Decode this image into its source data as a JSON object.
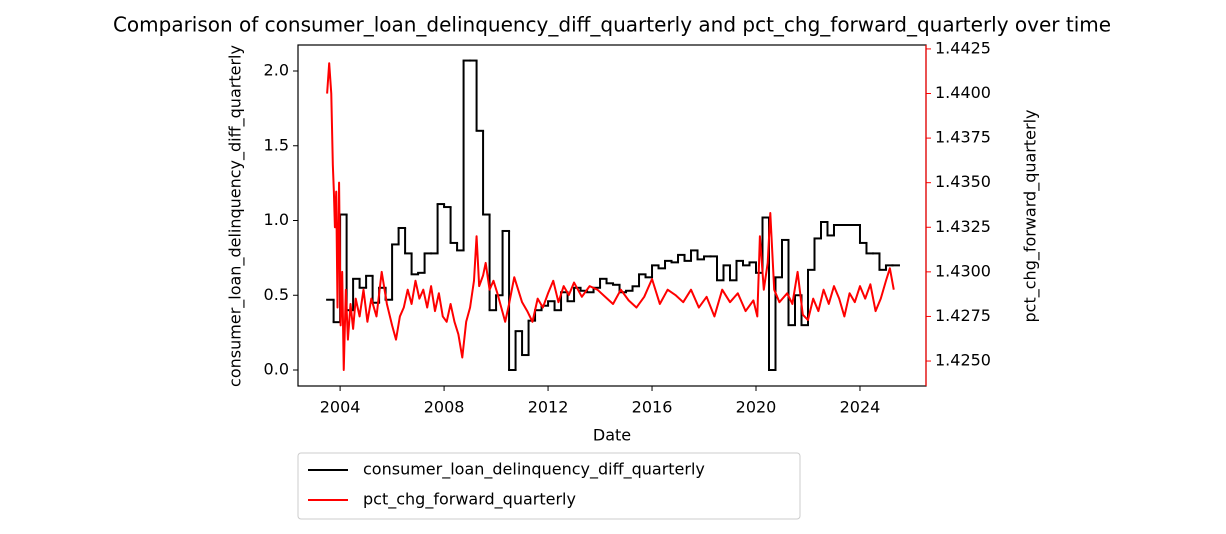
{
  "chart_data": {
    "type": "line",
    "title": "Comparison of consumer_loan_delinquency_diff_quarterly and pct_chg_forward_quarterly over time",
    "xlabel": "Date",
    "ylabel": "consumer_loan_delinquency_diff_quarterly",
    "y2label": "pct_chg_forward_quarterly",
    "xlim": [
      2002.38,
      2026.54
    ],
    "xticks": [
      2004,
      2008,
      2012,
      2016,
      2020,
      2024
    ],
    "ylim": [
      -0.107,
      2.174
    ],
    "yticks": [
      {
        "value": 0,
        "label": "0.0"
      },
      0.5,
      {
        "value": 1,
        "label": "1.0"
      },
      1.5,
      {
        "value": 2,
        "label": "2.0"
      }
    ],
    "y2lim": [
      1.4236,
      1.44272
    ],
    "y2ticks": [
      {
        "value": 1.425,
        "label": "1.4250"
      },
      1.4275,
      {
        "value": 1.43,
        "label": "1.4300"
      },
      1.4325,
      {
        "value": 1.435,
        "label": "1.4350"
      },
      1.4375,
      {
        "value": 1.44,
        "label": "1.4400"
      },
      1.4425
    ],
    "y2color": "#ff0000",
    "legend": "below",
    "series": [
      {
        "name": "consumer_loan_delinquency_diff_quarterly",
        "color": "#000000",
        "step": true,
        "x": [
          2003.5,
          2003.75,
          2004,
          2004.25,
          2004.5,
          2004.75,
          2005,
          2005.25,
          2005.5,
          2005.75,
          2006,
          2006.25,
          2006.5,
          2006.75,
          2007,
          2007.25,
          2007.5,
          2007.75,
          2008,
          2008.25,
          2008.5,
          2008.75,
          2009,
          2009.25,
          2009.5,
          2009.75,
          2010,
          2010.25,
          2010.5,
          2010.75,
          2011,
          2011.25,
          2011.5,
          2011.75,
          2012,
          2012.25,
          2012.5,
          2012.75,
          2013,
          2013.25,
          2013.5,
          2013.75,
          2014,
          2014.25,
          2014.5,
          2014.75,
          2015,
          2015.25,
          2015.5,
          2015.75,
          2016,
          2016.25,
          2016.5,
          2016.75,
          2017,
          2017.25,
          2017.5,
          2017.75,
          2018,
          2018.25,
          2018.5,
          2018.75,
          2019,
          2019.25,
          2019.5,
          2019.75,
          2020,
          2020.25,
          2020.5,
          2020.75,
          2021,
          2021.25,
          2021.5,
          2021.75,
          2022,
          2022.25,
          2022.5,
          2022.75,
          2023,
          2023.25,
          2023.5,
          2023.75,
          2024,
          2024.25,
          2024.5,
          2024.75,
          2025,
          2025.25
        ],
        "values": [
          0.47,
          0.32,
          1.04,
          0.4,
          0.61,
          0.55,
          0.63,
          0.45,
          0.55,
          0.47,
          0.84,
          0.95,
          0.78,
          0.64,
          0.65,
          0.78,
          0.78,
          1.11,
          1.09,
          0.85,
          0.8,
          2.07,
          2.07,
          1.6,
          1.04,
          0.4,
          0.5,
          0.93,
          0,
          0.26,
          0.1,
          0.33,
          0.4,
          0.43,
          0.46,
          0.4,
          0.52,
          0.46,
          0.55,
          0.53,
          0.52,
          0.55,
          0.61,
          0.58,
          0.57,
          0.52,
          0.53,
          0.56,
          0.64,
          0.62,
          0.7,
          0.68,
          0.73,
          0.72,
          0.77,
          0.73,
          0.8,
          0.74,
          0.76,
          0.76,
          0.6,
          0.7,
          0.6,
          0.73,
          0.7,
          0.72,
          0.65,
          1.02,
          0,
          0.62,
          0.87,
          0.3,
          0.5,
          0.3,
          0.67,
          0.88,
          0.99,
          0.9,
          0.97,
          0.97,
          0.97,
          0.97,
          0.85,
          0.78,
          0.78,
          0.67,
          0.7,
          0.7
        ]
      },
      {
        "name": "pct_chg_forward_quarterly",
        "color": "#ff0000",
        "axis": "y2",
        "x": [
          2003.5,
          2003.58,
          2003.66,
          2003.72,
          2003.76,
          2003.8,
          2003.85,
          2003.9,
          2003.96,
          2004.02,
          2004.08,
          2004.14,
          2004.22,
          2004.3,
          2004.4,
          2004.5,
          2004.6,
          2004.75,
          2004.9,
          2005.05,
          2005.2,
          2005.4,
          2005.6,
          2005.8,
          2006,
          2006.15,
          2006.3,
          2006.45,
          2006.6,
          2006.75,
          2006.9,
          2007.05,
          2007.2,
          2007.35,
          2007.5,
          2007.65,
          2007.8,
          2007.95,
          2008.1,
          2008.25,
          2008.4,
          2008.55,
          2008.7,
          2008.85,
          2009,
          2009.15,
          2009.25,
          2009.35,
          2009.5,
          2009.6,
          2009.75,
          2009.9,
          2010.05,
          2010.2,
          2010.35,
          2010.5,
          2010.7,
          2010.85,
          2011,
          2011.2,
          2011.4,
          2011.6,
          2011.8,
          2012,
          2012.2,
          2012.4,
          2012.6,
          2012.8,
          2013,
          2013.3,
          2013.6,
          2013.9,
          2014.2,
          2014.5,
          2014.8,
          2015.1,
          2015.4,
          2015.7,
          2016,
          2016.3,
          2016.6,
          2016.9,
          2017.2,
          2017.5,
          2017.8,
          2018.1,
          2018.4,
          2018.7,
          2019,
          2019.3,
          2019.6,
          2019.9,
          2020.05,
          2020.15,
          2020.3,
          2020.45,
          2020.55,
          2020.7,
          2020.9,
          2021.2,
          2021.4,
          2021.6,
          2021.8,
          2022,
          2022.2,
          2022.4,
          2022.6,
          2022.8,
          2023,
          2023.2,
          2023.4,
          2023.6,
          2023.8,
          2024,
          2024.2,
          2024.4,
          2024.6,
          2024.8,
          2025,
          2025.15,
          2025.3
        ],
        "values": [
          1.44,
          1.4417,
          1.44,
          1.436,
          1.4345,
          1.4325,
          1.4345,
          1.428,
          1.435,
          1.427,
          1.43,
          1.4245,
          1.429,
          1.4262,
          1.4282,
          1.4268,
          1.4285,
          1.4275,
          1.429,
          1.4272,
          1.4285,
          1.4275,
          1.43,
          1.4282,
          1.427,
          1.4262,
          1.4275,
          1.428,
          1.429,
          1.4282,
          1.4295,
          1.4285,
          1.429,
          1.428,
          1.4292,
          1.4278,
          1.4288,
          1.4275,
          1.4272,
          1.4282,
          1.4272,
          1.4265,
          1.4252,
          1.4272,
          1.428,
          1.4295,
          1.432,
          1.4292,
          1.4298,
          1.4305,
          1.429,
          1.4295,
          1.4288,
          1.428,
          1.4272,
          1.4282,
          1.4297,
          1.429,
          1.4283,
          1.4278,
          1.4272,
          1.4285,
          1.428,
          1.4288,
          1.4295,
          1.4283,
          1.4292,
          1.4287,
          1.4294,
          1.4286,
          1.4292,
          1.429,
          1.4286,
          1.4282,
          1.429,
          1.4284,
          1.428,
          1.4286,
          1.4296,
          1.4282,
          1.429,
          1.4287,
          1.4283,
          1.429,
          1.428,
          1.4286,
          1.4275,
          1.429,
          1.4283,
          1.4288,
          1.4278,
          1.4284,
          1.4275,
          1.432,
          1.429,
          1.4305,
          1.4333,
          1.429,
          1.4283,
          1.4288,
          1.4282,
          1.43,
          1.4276,
          1.4273,
          1.4285,
          1.4278,
          1.429,
          1.4282,
          1.4292,
          1.4285,
          1.4275,
          1.4288,
          1.4283,
          1.4292,
          1.4285,
          1.4293,
          1.4278,
          1.4285,
          1.4295,
          1.4302,
          1.429
        ]
      }
    ]
  }
}
